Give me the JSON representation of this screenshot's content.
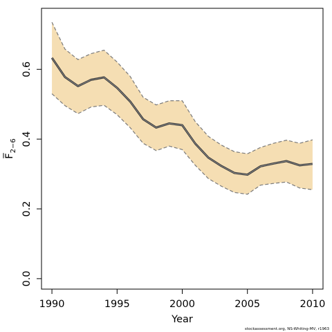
{
  "chart_data": {
    "type": "line",
    "title": "",
    "xlabel": "Year",
    "ylabel": "F̅",
    "ylabel_subscript": "2−6",
    "xlim": [
      1989.2,
      2010.8
    ],
    "ylim": [
      -0.03,
      0.775
    ],
    "xticks": [
      1990,
      1995,
      2000,
      2005,
      2010
    ],
    "yticks": [
      0.0,
      0.2,
      0.4,
      0.6
    ],
    "yticklabels": [
      "0.0",
      "0.2",
      "0.4",
      "0.6"
    ],
    "x": [
      1990,
      1991,
      1992,
      1993,
      1994,
      1995,
      1996,
      1997,
      1998,
      1999,
      2000,
      2001,
      2002,
      2003,
      2004,
      2005,
      2006,
      2007,
      2008,
      2009,
      2010
    ],
    "series": [
      {
        "role": "estimate",
        "values": [
          0.633,
          0.578,
          0.552,
          0.57,
          0.577,
          0.547,
          0.508,
          0.457,
          0.433,
          0.445,
          0.44,
          0.387,
          0.347,
          0.323,
          0.303,
          0.298,
          0.322,
          0.33,
          0.337,
          0.325,
          0.329
        ]
      },
      {
        "role": "upper",
        "values": [
          0.735,
          0.658,
          0.628,
          0.645,
          0.655,
          0.621,
          0.58,
          0.52,
          0.498,
          0.51,
          0.51,
          0.45,
          0.408,
          0.383,
          0.364,
          0.358,
          0.376,
          0.388,
          0.397,
          0.388,
          0.398
        ]
      },
      {
        "role": "lower",
        "values": [
          0.53,
          0.496,
          0.473,
          0.492,
          0.497,
          0.47,
          0.433,
          0.388,
          0.367,
          0.38,
          0.37,
          0.325,
          0.287,
          0.265,
          0.247,
          0.242,
          0.268,
          0.273,
          0.277,
          0.26,
          0.255
        ]
      }
    ],
    "colors": {
      "band_fill": "#f5deb3",
      "estimate_line": "#3a3a3a",
      "interval_line": "#7a7a7a",
      "axis": "#000000"
    },
    "grid": false,
    "legend": "none"
  },
  "footer": {
    "source": "stockassessment.org, NS-Whiting-MV, r1963"
  }
}
